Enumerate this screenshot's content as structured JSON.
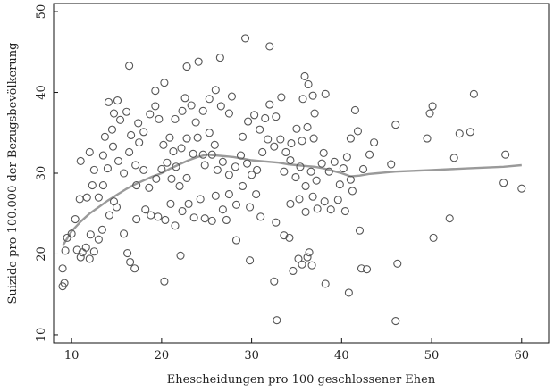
{
  "chart_data": {
    "type": "scatter",
    "xlabel": "Ehescheidungen pro 100 geschlossener Ehen",
    "ylabel": "Suizide pro 100.000 der Bezugsbevölkerung",
    "xlim": [
      8,
      63
    ],
    "ylim": [
      9,
      51
    ],
    "xticks": [
      10,
      20,
      30,
      40,
      50,
      60
    ],
    "yticks": [
      10,
      20,
      30,
      40,
      50
    ],
    "xtick_labels": [
      "10",
      "20",
      "30",
      "40",
      "50",
      "60"
    ],
    "ytick_labels": [
      "10",
      "20",
      "30",
      "40",
      "50"
    ],
    "grid": false,
    "marker": "hollow-circle",
    "marker_color": "#555555",
    "trend_color": "#9a9a9a",
    "series": [
      {
        "points": [
          [
            9,
            16
          ],
          [
            9.2,
            16.4
          ],
          [
            9,
            18.2
          ],
          [
            9.3,
            20.4
          ],
          [
            9.5,
            22
          ],
          [
            10,
            22.5
          ],
          [
            10.6,
            20.5
          ],
          [
            11,
            19.6
          ],
          [
            11.2,
            20.2
          ],
          [
            11.6,
            20.8
          ],
          [
            12,
            19.4
          ],
          [
            12.5,
            20.3
          ],
          [
            12.1,
            22.4
          ],
          [
            13,
            21.8
          ],
          [
            13.4,
            23
          ],
          [
            10.4,
            24.3
          ],
          [
            10.9,
            26.8
          ],
          [
            11.7,
            27
          ],
          [
            12.3,
            28.5
          ],
          [
            13,
            27
          ],
          [
            13.5,
            28.5
          ],
          [
            14.2,
            24.8
          ],
          [
            14.7,
            26.5
          ],
          [
            15,
            25.8
          ],
          [
            15.8,
            22.5
          ],
          [
            16.2,
            20.1
          ],
          [
            16.5,
            19
          ],
          [
            17,
            18.2
          ],
          [
            17.2,
            24.3
          ],
          [
            11,
            31.5
          ],
          [
            12,
            32.6
          ],
          [
            12.5,
            30.4
          ],
          [
            13.5,
            32.2
          ],
          [
            14,
            30.6
          ],
          [
            14.6,
            33.3
          ],
          [
            15.2,
            31.5
          ],
          [
            15.8,
            30
          ],
          [
            16.4,
            32.6
          ],
          [
            17.1,
            31
          ],
          [
            17.5,
            33.8
          ],
          [
            13.7,
            34.5
          ],
          [
            14.5,
            35.4
          ],
          [
            15.4,
            36.6
          ],
          [
            16.1,
            37.6
          ],
          [
            16.6,
            34.7
          ],
          [
            17.4,
            36.2
          ],
          [
            18,
            35.1
          ],
          [
            18.7,
            37.3
          ],
          [
            19.3,
            38.3
          ],
          [
            19.7,
            36.7
          ],
          [
            16.4,
            43.3
          ],
          [
            19.3,
            40.2
          ],
          [
            14.1,
            38.8
          ],
          [
            14.7,
            37.4
          ],
          [
            15.1,
            39
          ],
          [
            17.2,
            28.5
          ],
          [
            18,
            30.4
          ],
          [
            18.6,
            28.2
          ],
          [
            19.4,
            29.3
          ],
          [
            20,
            30.5
          ],
          [
            20.6,
            31.3
          ],
          [
            21.1,
            29.3
          ],
          [
            21.6,
            30.8
          ],
          [
            22,
            28.4
          ],
          [
            22.8,
            29.4
          ],
          [
            18.2,
            25.5
          ],
          [
            18.8,
            24.8
          ],
          [
            19.6,
            24.6
          ],
          [
            20.4,
            24.2
          ],
          [
            21,
            26.2
          ],
          [
            21.5,
            23.5
          ],
          [
            22.3,
            25.3
          ],
          [
            23,
            26.2
          ],
          [
            23.6,
            24.5
          ],
          [
            24.3,
            26.8
          ],
          [
            24.8,
            24.4
          ],
          [
            20.3,
            16.6
          ],
          [
            22.1,
            19.8
          ],
          [
            20.2,
            33.5
          ],
          [
            20.9,
            34.4
          ],
          [
            21.3,
            32.7
          ],
          [
            22.2,
            33.1
          ],
          [
            22.8,
            34.3
          ],
          [
            23.5,
            32.4
          ],
          [
            24,
            34.4
          ],
          [
            24.6,
            32.3
          ],
          [
            25.3,
            35
          ],
          [
            25.9,
            33.5
          ],
          [
            21.5,
            36.7
          ],
          [
            22.3,
            37.7
          ],
          [
            22.6,
            39.3
          ],
          [
            23.3,
            38.4
          ],
          [
            23.8,
            36.3
          ],
          [
            24.6,
            37.7
          ],
          [
            25.3,
            39.2
          ],
          [
            26,
            40.3
          ],
          [
            26.6,
            38.3
          ],
          [
            27.5,
            37.4
          ],
          [
            20.3,
            41.2
          ],
          [
            22.8,
            43.2
          ],
          [
            24.1,
            43.8
          ],
          [
            26.5,
            44.3
          ],
          [
            24.8,
            31
          ],
          [
            25.6,
            32.3
          ],
          [
            26.2,
            30.4
          ],
          [
            26.8,
            31.4
          ],
          [
            27.5,
            29.8
          ],
          [
            28.2,
            30.8
          ],
          [
            28.8,
            32.2
          ],
          [
            29.5,
            31.2
          ],
          [
            30,
            29.8
          ],
          [
            30.6,
            30.4
          ],
          [
            31.2,
            32.6
          ],
          [
            31.8,
            34.2
          ],
          [
            26,
            27.2
          ],
          [
            26.8,
            25.5
          ],
          [
            27.5,
            27.4
          ],
          [
            28.3,
            26.1
          ],
          [
            29,
            28.4
          ],
          [
            29.8,
            25.8
          ],
          [
            30.5,
            27.4
          ],
          [
            31,
            24.6
          ],
          [
            25.6,
            24.1
          ],
          [
            27.2,
            24.2
          ],
          [
            28.3,
            21.7
          ],
          [
            29.8,
            19.2
          ],
          [
            29,
            34.5
          ],
          [
            29.6,
            36.4
          ],
          [
            30.3,
            37.2
          ],
          [
            30.9,
            35.4
          ],
          [
            31.5,
            36.8
          ],
          [
            32,
            38.5
          ],
          [
            32.7,
            37
          ],
          [
            33.3,
            39.4
          ],
          [
            27.8,
            39.5
          ],
          [
            29.3,
            46.7
          ],
          [
            32,
            45.7
          ],
          [
            32.5,
            33.3
          ],
          [
            33.2,
            34.2
          ],
          [
            33.8,
            32.6
          ],
          [
            34.4,
            33.7
          ],
          [
            35,
            35.5
          ],
          [
            35.6,
            34
          ],
          [
            36.2,
            35.7
          ],
          [
            36.9,
            34.3
          ],
          [
            33.6,
            30.2
          ],
          [
            34.3,
            31.6
          ],
          [
            34.9,
            29.5
          ],
          [
            35.4,
            30.8
          ],
          [
            36,
            28.4
          ],
          [
            36.6,
            30.2
          ],
          [
            37.2,
            29.1
          ],
          [
            37.8,
            31.2
          ],
          [
            34.3,
            26.2
          ],
          [
            35.3,
            26.8
          ],
          [
            36,
            25.2
          ],
          [
            36.8,
            27.1
          ],
          [
            37.3,
            25.6
          ],
          [
            38.1,
            26.5
          ],
          [
            32.7,
            23.9
          ],
          [
            33.6,
            22.3
          ],
          [
            34.2,
            22
          ],
          [
            32.5,
            16.6
          ],
          [
            32.8,
            11.8
          ],
          [
            34.6,
            17.9
          ],
          [
            35.2,
            19.4
          ],
          [
            35.6,
            18.7
          ],
          [
            36.2,
            19.6
          ],
          [
            36.7,
            18.6
          ],
          [
            36.4,
            20.2
          ],
          [
            38.2,
            16.3
          ],
          [
            35.7,
            39.2
          ],
          [
            36.3,
            41
          ],
          [
            36.8,
            39.6
          ],
          [
            35.9,
            42
          ],
          [
            38.2,
            39.8
          ],
          [
            37,
            37.4
          ],
          [
            38,
            32.5
          ],
          [
            38.6,
            30.2
          ],
          [
            39.2,
            31.4
          ],
          [
            39.8,
            28.6
          ],
          [
            40.2,
            30.6
          ],
          [
            40.6,
            32
          ],
          [
            41,
            29.2
          ],
          [
            38.8,
            25.5
          ],
          [
            39.6,
            26.7
          ],
          [
            40.4,
            25.3
          ],
          [
            41.2,
            27.8
          ],
          [
            41,
            34.3
          ],
          [
            41.5,
            37.8
          ],
          [
            41.8,
            35.2
          ],
          [
            42.4,
            30.5
          ],
          [
            43.1,
            32.3
          ],
          [
            43.6,
            33.8
          ],
          [
            42,
            22.9
          ],
          [
            40.8,
            15.2
          ],
          [
            42.2,
            18.2
          ],
          [
            42.8,
            18.1
          ],
          [
            46,
            11.7
          ],
          [
            46.2,
            18.8
          ],
          [
            45.5,
            31.1
          ],
          [
            46,
            36
          ],
          [
            49.5,
            34.3
          ],
          [
            49.8,
            37.4
          ],
          [
            50.2,
            22
          ],
          [
            50.1,
            38.3
          ],
          [
            52,
            24.4
          ],
          [
            52.5,
            31.9
          ],
          [
            53.1,
            34.9
          ],
          [
            54.3,
            35.1
          ],
          [
            54.7,
            39.8
          ],
          [
            58,
            28.8
          ],
          [
            58.2,
            32.3
          ],
          [
            60,
            28.1
          ]
        ]
      }
    ],
    "trend_line": {
      "type": "lowess",
      "x": [
        9,
        10,
        11,
        12,
        13,
        14,
        15,
        16,
        17,
        18,
        19,
        20,
        21,
        22,
        23,
        24,
        25,
        26,
        27,
        28,
        29,
        30,
        31,
        32,
        33,
        34,
        35,
        36,
        37,
        38,
        39,
        40,
        41,
        42,
        43,
        44,
        45,
        46,
        48,
        50,
        52,
        54,
        56,
        58,
        60
      ],
      "y": [
        21,
        22.8,
        24,
        25,
        25.8,
        26.6,
        27.3,
        28,
        28.6,
        29.1,
        29.6,
        30,
        30.6,
        31.1,
        31.6,
        32,
        32.3,
        32.2,
        32.1,
        32,
        31.8,
        31.6,
        31.5,
        31.4,
        31.3,
        31.1,
        31,
        30.9,
        30.8,
        30.6,
        30.3,
        30,
        29.6,
        29.7,
        29.9,
        30,
        30.1,
        30.2,
        30.3,
        30.4,
        30.5,
        30.6,
        30.7,
        30.8,
        31
      ]
    }
  }
}
